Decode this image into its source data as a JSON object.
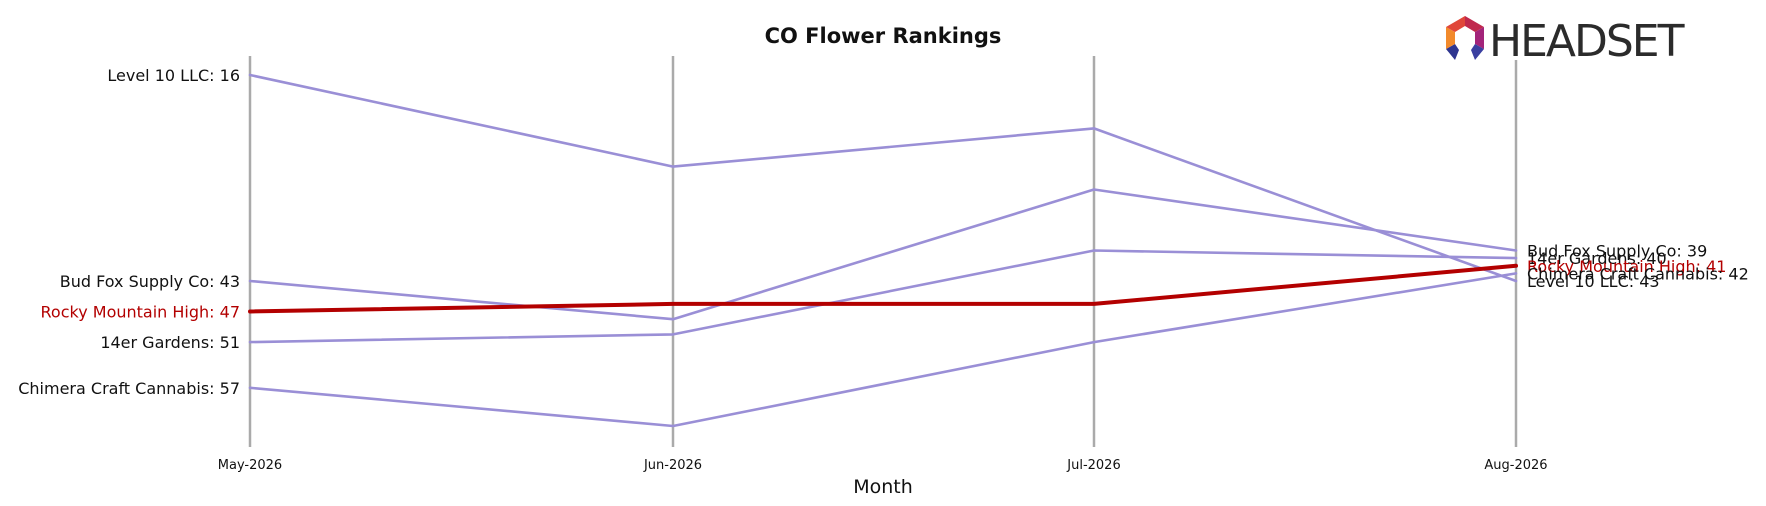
{
  "chart_data": {
    "type": "line",
    "title": "CO Flower Rankings",
    "xlabel": "Month",
    "ylabel": "",
    "categories": [
      "May-2026",
      "Jun-2026",
      "Jul-2026",
      "Aug-2026"
    ],
    "y_inverted": true,
    "grid": false,
    "highlight_color": "#b30000",
    "series_color": "#9a8fd6",
    "axis_line_color": "#aaaaaa",
    "series": [
      {
        "name": "Level 10 LLC",
        "values": [
          16,
          28,
          23,
          43
        ],
        "highlight": false
      },
      {
        "name": "Bud Fox Supply Co",
        "values": [
          43,
          48,
          31,
          39
        ],
        "highlight": false
      },
      {
        "name": "14er Gardens",
        "values": [
          51,
          50,
          39,
          40
        ],
        "highlight": false
      },
      {
        "name": "Chimera Craft Cannabis",
        "values": [
          57,
          62,
          51,
          42
        ],
        "highlight": false
      },
      {
        "name": "Rocky Mountain High",
        "values": [
          47,
          46,
          46,
          41
        ],
        "highlight": true
      }
    ],
    "left_labels": [
      "Level 10 LLC: 16",
      "Bud Fox Supply Co: 43",
      "Rocky Mountain High: 47",
      "14er Gardens: 51",
      "Chimera Craft Cannabis: 57"
    ],
    "right_labels": [
      "Bud Fox Supply Co: 39",
      "14er Gardens: 40",
      "Rocky Mountain High: 41",
      "Chimera Craft Cannabis: 42",
      "Level 10 LLC: 43"
    ]
  },
  "logo": {
    "text": "HEADSET",
    "icon": "headset-hexagon-icon"
  }
}
